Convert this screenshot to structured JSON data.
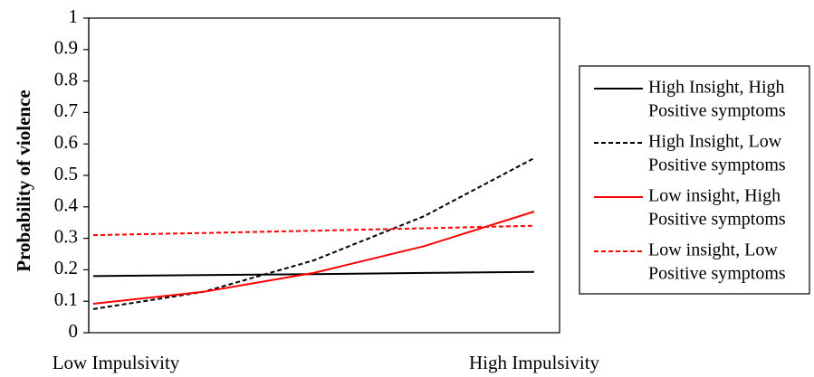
{
  "chart_data": {
    "type": "line",
    "title": "",
    "ylabel": "Probability of violence",
    "xlabel": "",
    "categories": [
      "Low Impulsivity",
      "High Impulsivity"
    ],
    "x": [
      0,
      0.25,
      0.5,
      0.75,
      1
    ],
    "ylim": [
      0,
      1
    ],
    "yticks": [
      "0",
      "0.1",
      "0.2",
      "0.3",
      "0.4",
      "0.5",
      "0.6",
      "0.7",
      "0.8",
      "0.9",
      "1"
    ],
    "grid": false,
    "legend_position": "right",
    "series": [
      {
        "name_lines": [
          "High Insight, High",
          "Positive symptoms"
        ],
        "color": "#000000",
        "dash": "solid",
        "values": [
          0.18,
          0.183,
          0.186,
          0.19,
          0.193
        ]
      },
      {
        "name_lines": [
          "High Insight, Low",
          "Positive symptoms"
        ],
        "color": "#000000",
        "dash": "dashed",
        "values": [
          0.075,
          0.13,
          0.23,
          0.37,
          0.555
        ]
      },
      {
        "name_lines": [
          "Low insight, High",
          "Positive symptoms"
        ],
        "color": "#ff0000",
        "dash": "solid",
        "values": [
          0.092,
          0.13,
          0.19,
          0.275,
          0.385
        ]
      },
      {
        "name_lines": [
          "Low insight, Low",
          "Positive symptoms"
        ],
        "color": "#ff0000",
        "dash": "dashed",
        "values": [
          0.31,
          0.317,
          0.324,
          0.332,
          0.34
        ]
      }
    ]
  }
}
